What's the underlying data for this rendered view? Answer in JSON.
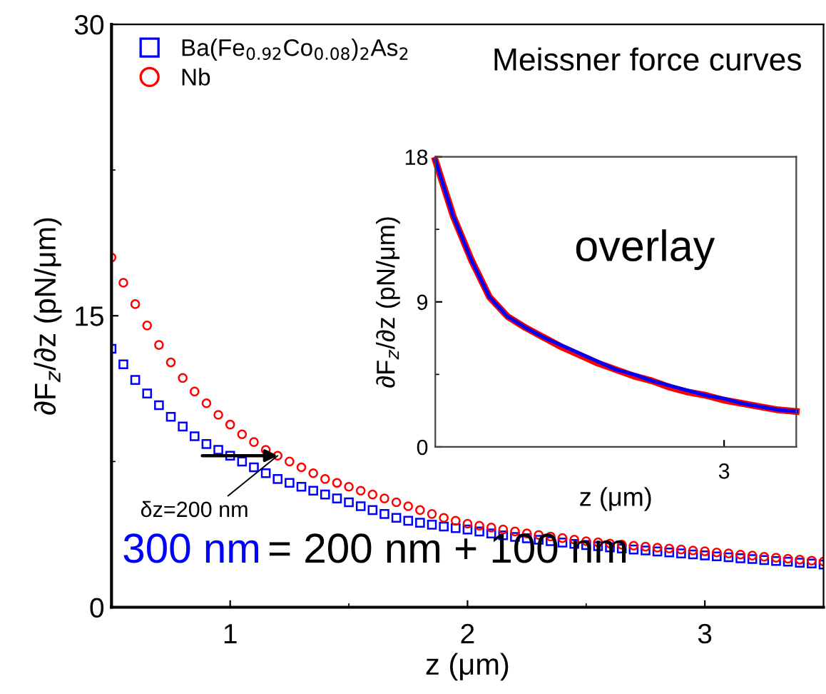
{
  "chart_data": [
    {
      "type": "scatter",
      "xlabel": "z (μm)",
      "ylabel": "∂F$_{z}$/∂z (pN/μm)",
      "xlim": [
        0.5,
        3.5
      ],
      "ylim": [
        0,
        30
      ],
      "xticks": [
        1,
        {
          "value": 1.5,
          "label": null
        },
        2,
        {
          "value": 2.5,
          "label": null
        },
        3
      ],
      "yticks": [
        0,
        {
          "value": 7.5,
          "label": null
        },
        15,
        {
          "value": 22.5,
          "label": null
        },
        30
      ],
      "legend": "top left",
      "annotations": [
        "Meissner force curves",
        "300 nm",
        "= 200 nm + 100 nm",
        {
          "text": "δz=200 nm",
          "x": 1.2,
          "y": 7.8
        }
      ],
      "x": [
        0.5,
        0.55,
        0.6,
        0.65,
        0.7,
        0.75,
        0.8,
        0.85,
        0.9,
        0.95,
        1.0,
        1.05,
        1.1,
        1.15,
        1.2,
        1.25,
        1.3,
        1.35,
        1.4,
        1.45,
        1.5,
        1.55,
        1.6,
        1.65,
        1.7,
        1.75,
        1.8,
        1.85,
        1.9,
        1.95,
        2.0,
        2.05,
        2.1,
        2.15,
        2.2,
        2.25,
        2.3,
        2.35,
        2.4,
        2.45,
        2.5,
        2.55,
        2.6,
        2.65,
        2.7,
        2.75,
        2.8,
        2.85,
        2.9,
        2.95,
        3.0,
        3.05,
        3.1,
        3.15,
        3.2,
        3.25,
        3.3,
        3.35,
        3.4,
        3.45,
        3.5
      ],
      "series": [
        {
          "name": "Ba(Fe$_{0.92}$Co$_{0.08}$)$_{2}$As$_{2}$",
          "color": "#0000ff",
          "marker": "square",
          "values": [
            13.3,
            12.5,
            11.7,
            11.0,
            10.4,
            9.8,
            9.3,
            8.8,
            8.4,
            8.1,
            7.8,
            7.5,
            7.2,
            6.9,
            6.6,
            6.4,
            6.2,
            6.0,
            5.8,
            5.6,
            5.4,
            5.2,
            5.0,
            4.8,
            4.6,
            4.45,
            4.35,
            4.25,
            4.15,
            4.07,
            4.0,
            3.9,
            3.8,
            3.7,
            3.62,
            3.55,
            3.47,
            3.4,
            3.33,
            3.26,
            3.2,
            3.14,
            3.08,
            3.02,
            2.97,
            2.92,
            2.87,
            2.82,
            2.77,
            2.72,
            2.67,
            2.62,
            2.57,
            2.52,
            2.48,
            2.43,
            2.38,
            2.34,
            2.29,
            2.25,
            2.2
          ]
        },
        {
          "name": "Nb",
          "color": "#ff0000",
          "marker": "circle",
          "values": [
            18.0,
            16.7,
            15.6,
            14.5,
            13.5,
            12.6,
            11.8,
            11.1,
            10.5,
            9.9,
            9.4,
            8.9,
            8.5,
            8.1,
            7.8,
            7.5,
            7.2,
            6.9,
            6.6,
            6.4,
            6.2,
            6.0,
            5.8,
            5.6,
            5.4,
            5.2,
            5.0,
            4.8,
            4.6,
            4.45,
            4.3,
            4.2,
            4.1,
            4.0,
            3.9,
            3.8,
            3.72,
            3.64,
            3.56,
            3.48,
            3.4,
            3.34,
            3.28,
            3.22,
            3.17,
            3.12,
            3.07,
            3.02,
            2.97,
            2.92,
            2.88,
            2.82,
            2.77,
            2.71,
            2.66,
            2.6,
            2.55,
            2.5,
            2.45,
            2.4,
            2.35
          ]
        }
      ]
    },
    {
      "type": "line",
      "xlabel": "z (μm)",
      "ylabel": "∂F$_{z}$/∂z (pN/μm)",
      "ylim": [
        0,
        18
      ],
      "yticks": [
        0,
        {
          "value": 4.5,
          "label": null
        },
        9,
        {
          "value": 13.5,
          "label": null
        },
        18
      ],
      "annotations": [
        "overlay"
      ],
      "categories": [
        null,
        null,
        null,
        null,
        null,
        null,
        null,
        null,
        null,
        null,
        null,
        null,
        null,
        null,
        null,
        null,
        "3",
        null,
        null,
        null,
        null
      ],
      "series": [
        {
          "color": "#ff0000",
          "values": [
            17.8,
            14.3,
            11.6,
            9.3,
            8.1,
            7.4,
            6.8,
            6.2,
            5.7,
            5.2,
            4.8,
            4.4,
            4.1,
            3.7,
            3.4,
            3.2,
            2.9,
            2.7,
            2.5,
            2.3,
            2.2
          ]
        },
        {
          "color": "#0000ff",
          "values": [
            17.8,
            14.3,
            11.6,
            9.3,
            8.1,
            7.4,
            6.8,
            6.3,
            5.8,
            5.3,
            4.8,
            4.5,
            4.1,
            3.8,
            3.5,
            3.2,
            3.0,
            2.7,
            2.5,
            2.3,
            2.2
          ]
        }
      ]
    }
  ]
}
